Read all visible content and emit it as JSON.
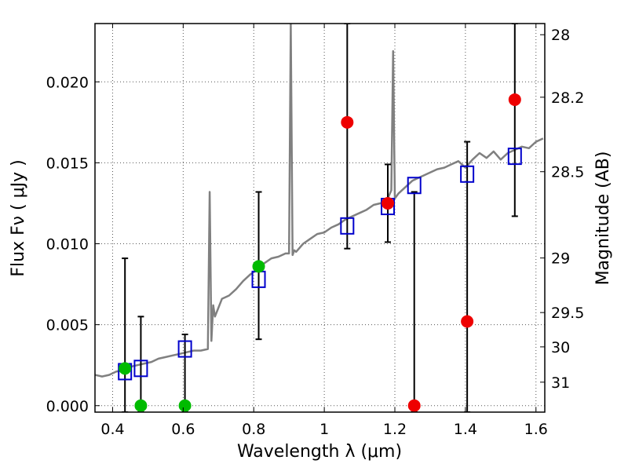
{
  "chart_data": {
    "type": "scatter",
    "xlabel": "Wavelength  λ (μm)",
    "ylabel": "Flux  Fν  ( μJy )",
    "y2label": "Magnitude (AB)",
    "xlim": [
      0.35,
      1.625
    ],
    "ylim": [
      -0.0004,
      0.0236
    ],
    "grid": true,
    "x_ticks": [
      0.4,
      0.6,
      0.8,
      1.0,
      1.2,
      1.4,
      1.6
    ],
    "x_tick_labels": [
      "0.4",
      "0.6",
      "0.8",
      "1",
      "1.2",
      "1.4",
      "1.6"
    ],
    "y_ticks": [
      0.0,
      0.005,
      0.01,
      0.015,
      0.02
    ],
    "y_tick_labels": [
      "0.000",
      "0.005",
      "0.010",
      "0.015",
      "0.020"
    ],
    "right_ticks": [
      {
        "label": "28",
        "flux": 0.02291
      },
      {
        "label": "28.2",
        "flux": 0.01905
      },
      {
        "label": "28.5",
        "flux": 0.01445
      },
      {
        "label": "29",
        "flux": 0.00912
      },
      {
        "label": "29.5",
        "flux": 0.00575
      },
      {
        "label": "30",
        "flux": 0.00363
      },
      {
        "label": "31",
        "flux": 0.00145
      }
    ],
    "colors": {
      "model": "#808080",
      "model_points": "#0000cc",
      "detections": "#00bb00",
      "nondetections": "#ee0000",
      "errorbars": "#000000",
      "grid": "#555555"
    },
    "series": [
      {
        "name": "model_spectrum",
        "style": "line",
        "x": [
          0.35,
          0.37,
          0.39,
          0.41,
          0.43,
          0.45,
          0.47,
          0.49,
          0.51,
          0.53,
          0.55,
          0.57,
          0.59,
          0.61,
          0.63,
          0.65,
          0.67,
          0.675,
          0.68,
          0.685,
          0.69,
          0.71,
          0.73,
          0.75,
          0.77,
          0.79,
          0.81,
          0.83,
          0.85,
          0.87,
          0.89,
          0.9,
          0.905,
          0.91,
          0.915,
          0.92,
          0.94,
          0.96,
          0.98,
          1.0,
          1.02,
          1.04,
          1.06,
          1.08,
          1.1,
          1.12,
          1.14,
          1.16,
          1.18,
          1.19,
          1.195,
          1.2,
          1.21,
          1.22,
          1.23,
          1.24,
          1.25,
          1.26,
          1.27,
          1.28,
          1.3,
          1.32,
          1.34,
          1.36,
          1.38,
          1.4,
          1.42,
          1.44,
          1.46,
          1.48,
          1.5,
          1.52,
          1.54,
          1.56,
          1.58,
          1.6,
          1.62
        ],
        "y": [
          0.0019,
          0.0018,
          0.0019,
          0.0021,
          0.0022,
          0.0024,
          0.0025,
          0.0026,
          0.0027,
          0.0029,
          0.003,
          0.0031,
          0.0032,
          0.0033,
          0.0034,
          0.0034,
          0.0035,
          0.0132,
          0.004,
          0.0062,
          0.0055,
          0.0066,
          0.0068,
          0.0072,
          0.0077,
          0.0081,
          0.0084,
          0.0088,
          0.0091,
          0.0092,
          0.0094,
          0.0094,
          0.0236,
          0.0093,
          0.0096,
          0.0095,
          0.01,
          0.0103,
          0.0106,
          0.0107,
          0.011,
          0.0112,
          0.0115,
          0.0117,
          0.0119,
          0.0121,
          0.0124,
          0.0125,
          0.0128,
          0.0133,
          0.0219,
          0.0128,
          0.0131,
          0.0133,
          0.0135,
          0.0137,
          0.0139,
          0.014,
          0.0141,
          0.0142,
          0.0144,
          0.0146,
          0.0147,
          0.0149,
          0.0151,
          0.0147,
          0.0152,
          0.0156,
          0.0153,
          0.0157,
          0.0152,
          0.0156,
          0.0158,
          0.016,
          0.0159,
          0.0163,
          0.0165
        ]
      },
      {
        "name": "model_photometry",
        "style": "open-square",
        "x": [
          0.435,
          0.48,
          0.605,
          0.814,
          1.065,
          1.18,
          1.255,
          1.405,
          1.54
        ],
        "y": [
          0.0021,
          0.0023,
          0.0035,
          0.0078,
          0.0111,
          0.0123,
          0.0136,
          0.0143,
          0.0154
        ]
      },
      {
        "name": "detections",
        "style": "filled-circle",
        "x": [
          0.435,
          0.48,
          0.605,
          0.814
        ],
        "y": [
          0.0023,
          0.0,
          0.0,
          0.0086
        ]
      },
      {
        "name": "nondetections",
        "style": "filled-circle",
        "x": [
          1.065,
          1.18,
          1.255,
          1.405,
          1.54
        ],
        "y": [
          0.0175,
          0.0125,
          0.0,
          0.0052,
          0.0189
        ]
      }
    ],
    "errorbars": [
      {
        "x": 0.435,
        "low": -0.0004,
        "high": 0.0091
      },
      {
        "x": 0.48,
        "low": -0.0004,
        "high": 0.0055
      },
      {
        "x": 0.605,
        "low": -0.0004,
        "high": 0.0044
      },
      {
        "x": 0.814,
        "low": 0.0041,
        "high": 0.0132
      },
      {
        "x": 1.065,
        "low": 0.0097,
        "high": 0.0236
      },
      {
        "x": 1.18,
        "low": 0.0101,
        "high": 0.0149
      },
      {
        "x": 1.255,
        "low": -0.0004,
        "high": 0.0132
      },
      {
        "x": 1.405,
        "low": -0.0004,
        "high": 0.0163
      },
      {
        "x": 1.54,
        "low": 0.0117,
        "high": 0.0236
      }
    ]
  }
}
